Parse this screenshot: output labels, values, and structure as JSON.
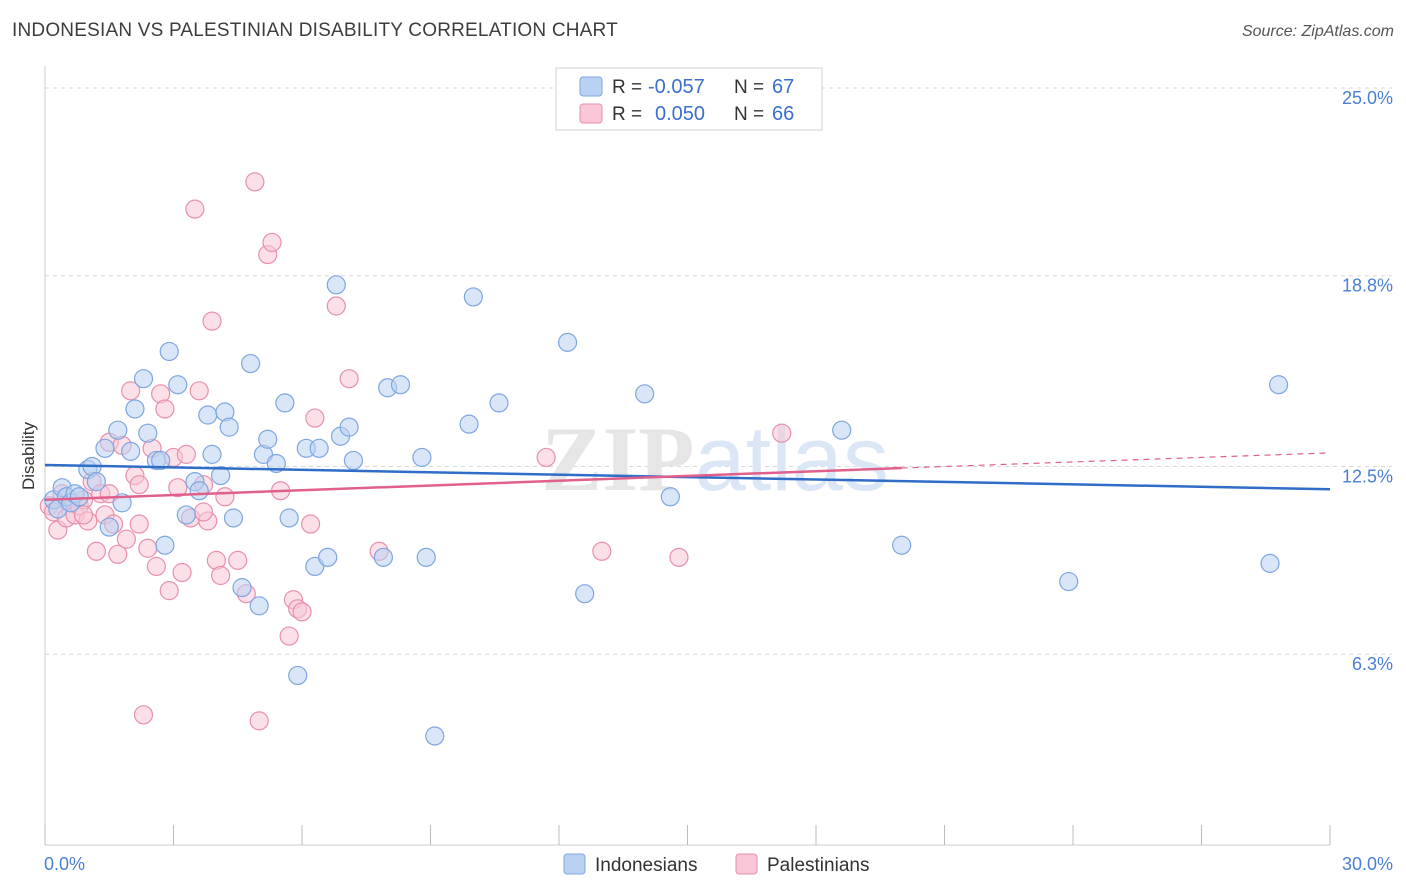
{
  "title": "INDONESIAN VS PALESTINIAN DISABILITY CORRELATION CHART",
  "source": "Source: ZipAtlas.com",
  "watermark": "ZIPatlas",
  "colors": {
    "blue_fill": "#b9d1f3",
    "blue_stroke": "#7ea6e0",
    "blue_line": "#2f6dc7",
    "pink_fill": "#f8c6d6",
    "pink_stroke": "#e98fae",
    "pink_line": "#e0608c",
    "tick_text": "#4a7fd4",
    "grid": "#d8d8d8"
  },
  "legend": {
    "rows": [
      {
        "r_label": "R =",
        "r_value": "-0.057",
        "n_label": "N =",
        "n_value": "67"
      },
      {
        "r_label": "R =",
        "r_value": "0.050",
        "n_label": "N =",
        "n_value": "66"
      }
    ]
  },
  "bottom_legend": [
    "Indonesians",
    "Palestinians"
  ],
  "chart_data": {
    "type": "scatter",
    "title": "INDONESIAN VS PALESTINIAN DISABILITY CORRELATION CHART",
    "xlabel": "",
    "ylabel": "Disability",
    "xlim": [
      0,
      30
    ],
    "ylim": [
      0,
      25
    ],
    "x_tick_labels": [
      "0.0%",
      "30.0%"
    ],
    "y_ticks": [
      6.3,
      12.5,
      18.8,
      25.0
    ],
    "y_tick_labels": [
      "6.3%",
      "12.5%",
      "18.8%",
      "25.0%"
    ],
    "grid": "horizontal dashed",
    "legend_position": "top-center",
    "series": [
      {
        "name": "Indonesians",
        "color": "#b9d1f3",
        "trend": {
          "x": [
            0,
            30
          ],
          "y": [
            12.55,
            11.75
          ]
        },
        "points": [
          [
            0.2,
            11.4
          ],
          [
            0.3,
            11.1
          ],
          [
            0.4,
            11.8
          ],
          [
            0.5,
            11.5
          ],
          [
            0.6,
            11.3
          ],
          [
            0.7,
            11.6
          ],
          [
            0.8,
            11.5
          ],
          [
            1.0,
            12.4
          ],
          [
            1.1,
            12.5
          ],
          [
            1.2,
            12.0
          ],
          [
            1.4,
            13.1
          ],
          [
            1.5,
            10.5
          ],
          [
            1.7,
            13.7
          ],
          [
            1.8,
            11.3
          ],
          [
            2.0,
            13.0
          ],
          [
            2.1,
            14.4
          ],
          [
            2.3,
            15.4
          ],
          [
            2.4,
            13.6
          ],
          [
            2.6,
            12.7
          ],
          [
            2.7,
            12.7
          ],
          [
            2.8,
            9.9
          ],
          [
            2.9,
            16.3
          ],
          [
            3.1,
            15.2
          ],
          [
            3.3,
            10.9
          ],
          [
            3.5,
            12.0
          ],
          [
            3.6,
            11.7
          ],
          [
            3.8,
            14.2
          ],
          [
            3.9,
            12.9
          ],
          [
            4.1,
            12.2
          ],
          [
            4.2,
            14.3
          ],
          [
            4.3,
            13.8
          ],
          [
            4.4,
            10.8
          ],
          [
            4.6,
            8.5
          ],
          [
            4.8,
            15.9
          ],
          [
            5.0,
            7.9
          ],
          [
            5.1,
            12.9
          ],
          [
            5.2,
            13.4
          ],
          [
            5.4,
            12.6
          ],
          [
            5.6,
            14.6
          ],
          [
            5.7,
            10.8
          ],
          [
            5.9,
            5.6
          ],
          [
            6.1,
            13.1
          ],
          [
            6.3,
            9.2
          ],
          [
            6.4,
            13.1
          ],
          [
            6.6,
            9.5
          ],
          [
            6.8,
            18.5
          ],
          [
            6.9,
            13.5
          ],
          [
            7.1,
            13.8
          ],
          [
            7.2,
            12.7
          ],
          [
            7.9,
            9.5
          ],
          [
            8.0,
            15.1
          ],
          [
            8.3,
            15.2
          ],
          [
            8.8,
            12.8
          ],
          [
            8.9,
            9.5
          ],
          [
            9.1,
            3.6
          ],
          [
            9.9,
            13.9
          ],
          [
            10.0,
            18.1
          ],
          [
            10.6,
            14.6
          ],
          [
            12.2,
            16.6
          ],
          [
            12.6,
            8.3
          ],
          [
            14.0,
            14.9
          ],
          [
            14.6,
            11.5
          ],
          [
            18.6,
            13.7
          ],
          [
            20.0,
            9.9
          ],
          [
            23.9,
            8.7
          ],
          [
            28.6,
            9.3
          ],
          [
            28.8,
            15.2
          ]
        ]
      },
      {
        "name": "Palestinians",
        "color": "#f8c6d6",
        "trend": {
          "x": [
            0,
            20
          ],
          "y": [
            11.4,
            12.45
          ]
        },
        "trend_extension": {
          "x": [
            20,
            30
          ],
          "y": [
            12.45,
            12.95
          ]
        },
        "points": [
          [
            0.1,
            11.2
          ],
          [
            0.2,
            11.0
          ],
          [
            0.3,
            10.4
          ],
          [
            0.4,
            11.6
          ],
          [
            0.5,
            10.8
          ],
          [
            0.6,
            11.3
          ],
          [
            0.7,
            10.9
          ],
          [
            0.8,
            11.2
          ],
          [
            0.9,
            11.4
          ],
          [
            1.0,
            10.7
          ],
          [
            1.1,
            12.0
          ],
          [
            1.2,
            9.7
          ],
          [
            1.3,
            11.6
          ],
          [
            1.4,
            10.9
          ],
          [
            1.5,
            13.3
          ],
          [
            1.6,
            10.6
          ],
          [
            1.7,
            9.6
          ],
          [
            1.8,
            13.2
          ],
          [
            1.9,
            10.1
          ],
          [
            2.0,
            15.0
          ],
          [
            2.1,
            12.2
          ],
          [
            2.2,
            11.9
          ],
          [
            2.3,
            4.3
          ],
          [
            2.4,
            9.8
          ],
          [
            2.5,
            13.1
          ],
          [
            2.6,
            9.2
          ],
          [
            2.7,
            14.9
          ],
          [
            2.8,
            14.4
          ],
          [
            2.9,
            8.4
          ],
          [
            3.0,
            12.8
          ],
          [
            3.1,
            11.8
          ],
          [
            3.2,
            9.0
          ],
          [
            3.3,
            12.9
          ],
          [
            3.4,
            10.8
          ],
          [
            3.5,
            21.0
          ],
          [
            3.6,
            15.0
          ],
          [
            3.7,
            11.9
          ],
          [
            3.8,
            10.7
          ],
          [
            3.9,
            17.3
          ],
          [
            4.0,
            9.4
          ],
          [
            4.1,
            8.9
          ],
          [
            4.2,
            11.5
          ],
          [
            4.5,
            9.4
          ],
          [
            4.7,
            8.3
          ],
          [
            4.9,
            21.9
          ],
          [
            5.0,
            4.1
          ],
          [
            5.2,
            19.5
          ],
          [
            5.3,
            19.9
          ],
          [
            5.5,
            11.7
          ],
          [
            5.7,
            6.9
          ],
          [
            5.8,
            8.1
          ],
          [
            5.9,
            7.8
          ],
          [
            6.0,
            7.7
          ],
          [
            6.2,
            10.6
          ],
          [
            6.3,
            14.1
          ],
          [
            6.8,
            17.8
          ],
          [
            7.1,
            15.4
          ],
          [
            7.8,
            9.7
          ],
          [
            11.7,
            12.8
          ],
          [
            13.0,
            9.7
          ],
          [
            14.8,
            9.5
          ],
          [
            17.2,
            13.6
          ],
          [
            1.5,
            11.6
          ],
          [
            2.2,
            10.6
          ],
          [
            0.9,
            10.9
          ],
          [
            3.7,
            11.0
          ]
        ]
      }
    ]
  }
}
